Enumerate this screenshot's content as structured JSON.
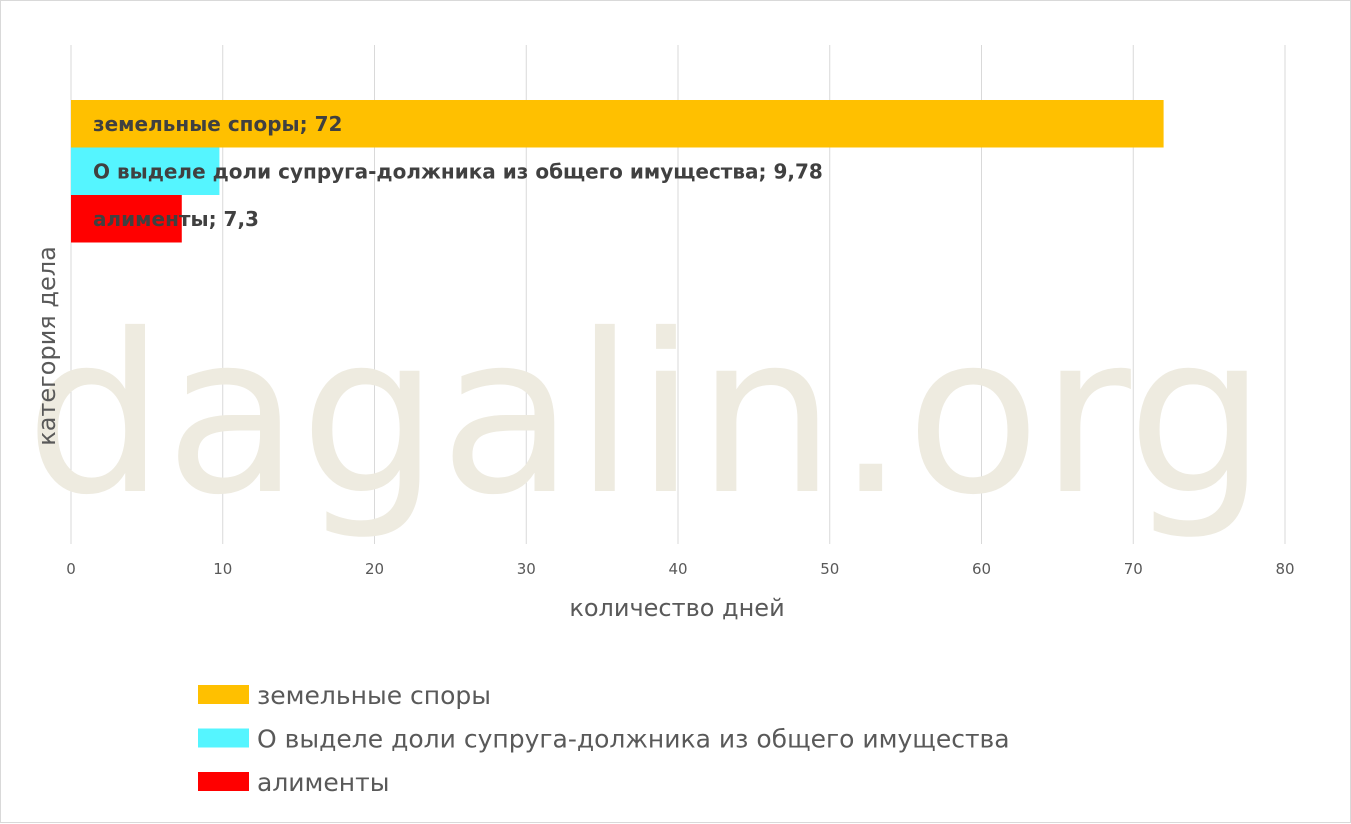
{
  "watermark": "dagalin.org",
  "chart_data": {
    "type": "bar",
    "orientation": "horizontal",
    "title": "",
    "xlabel": "количество дней",
    "ylabel": "категория дела",
    "xlim": [
      0,
      80
    ],
    "xticks": [
      0,
      10,
      20,
      30,
      40,
      50,
      60,
      70,
      80
    ],
    "grid": true,
    "legend_position": "bottom",
    "series": [
      {
        "name": "земельные споры",
        "value": 72,
        "data_label": "земельные споры; 72",
        "color": "#FFC000"
      },
      {
        "name": "О выделе доли супруга-должника из общего имущества",
        "value": 9.78,
        "data_label": "О выделе доли супруга-должника из общего имущества; 9,78",
        "color": "#55F5FF"
      },
      {
        "name": "алименты",
        "value": 7.3,
        "data_label": "алименты; 7,3",
        "color": "#FF0000"
      }
    ]
  }
}
